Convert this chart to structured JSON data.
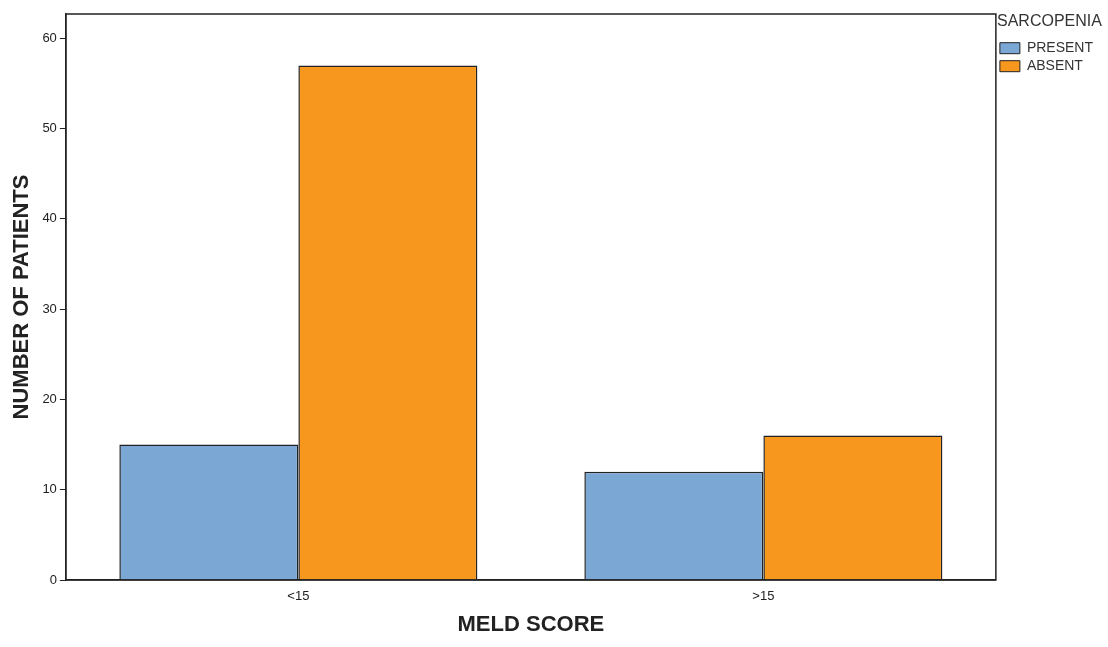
{
  "chart_data": {
    "type": "bar",
    "xlabel": "MELD SCORE",
    "ylabel": "NUMBER OF PATIENTS",
    "legend_title": "SARCOPENIA",
    "categories": [
      "<15",
      ">15"
    ],
    "series": [
      {
        "name": "PRESENT",
        "color": "#7ba7d4",
        "values": [
          15,
          12
        ]
      },
      {
        "name": "ABSENT",
        "color": "#f7971e",
        "values": [
          57,
          16
        ]
      }
    ],
    "ylim": [
      0,
      62.7
    ],
    "yticks": [
      0,
      10,
      20,
      30,
      40,
      50,
      60
    ],
    "grid": false,
    "legend": "top right"
  }
}
